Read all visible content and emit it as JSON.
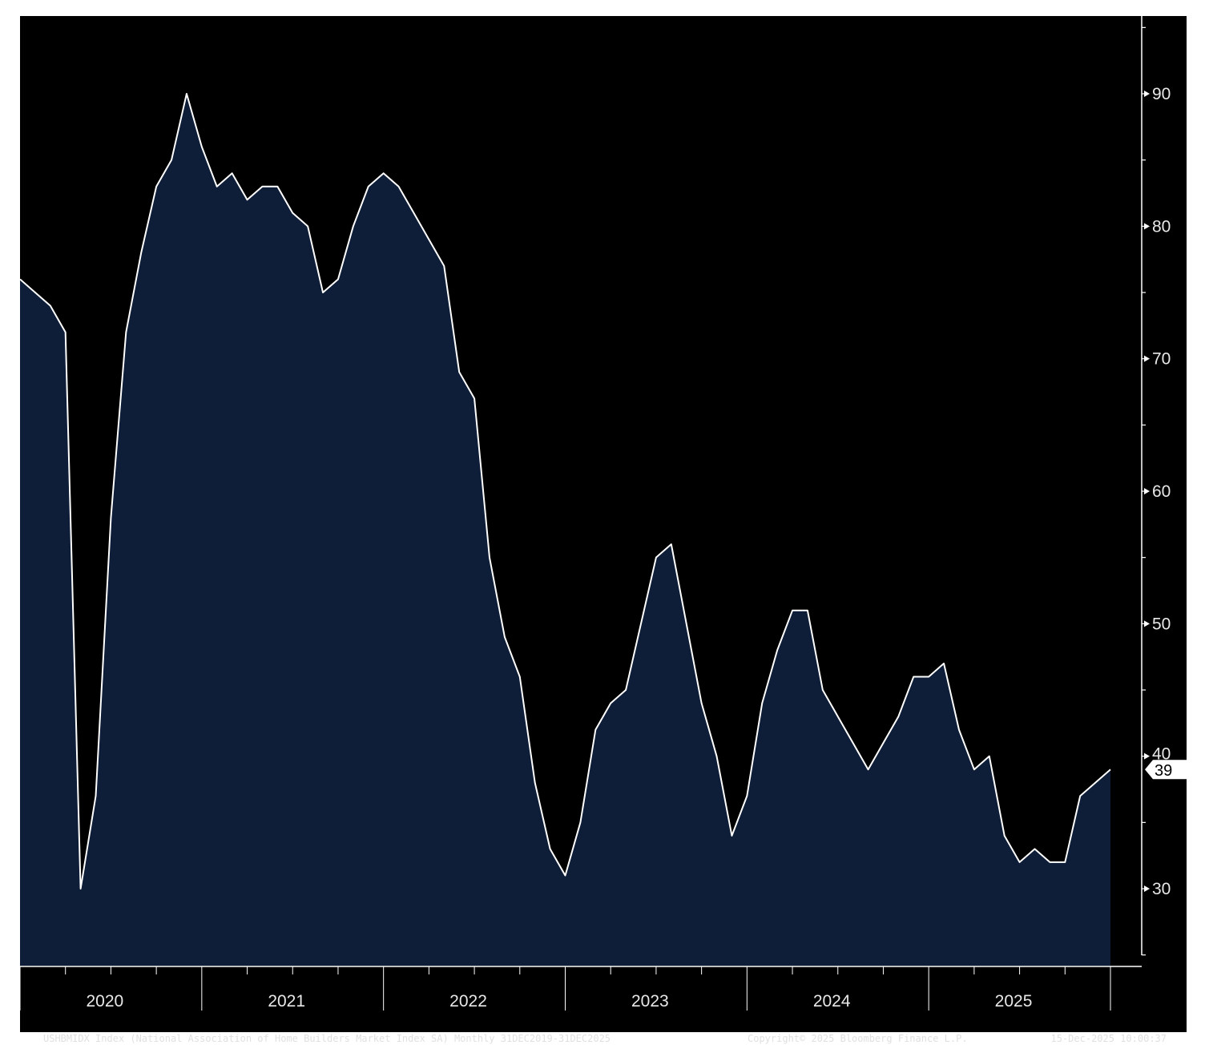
{
  "chart_data": {
    "type": "area",
    "title": "",
    "xlabel": "",
    "ylabel": "",
    "ylim": [
      24.5,
      95
    ],
    "yticks": [
      30,
      40,
      50,
      60,
      70,
      80,
      90
    ],
    "x_year_labels": [
      "2020",
      "2021",
      "2022",
      "2023",
      "2024",
      "2025"
    ],
    "last_value_label": "39",
    "series": [
      {
        "x": [
          "2019-12",
          "2020-01",
          "2020-02",
          "2020-03",
          "2020-04",
          "2020-05",
          "2020-06",
          "2020-07",
          "2020-08",
          "2020-09",
          "2020-10",
          "2020-11",
          "2020-12",
          "2021-01",
          "2021-02",
          "2021-03",
          "2021-04",
          "2021-05",
          "2021-06",
          "2021-07",
          "2021-08",
          "2021-09",
          "2021-10",
          "2021-11",
          "2021-12",
          "2022-01",
          "2022-02",
          "2022-03",
          "2022-04",
          "2022-05",
          "2022-06",
          "2022-07",
          "2022-08",
          "2022-09",
          "2022-10",
          "2022-11",
          "2022-12",
          "2023-01",
          "2023-02",
          "2023-03",
          "2023-04",
          "2023-05",
          "2023-06",
          "2023-07",
          "2023-08",
          "2023-09",
          "2023-10",
          "2023-11",
          "2023-12",
          "2024-01",
          "2024-02",
          "2024-03",
          "2024-04",
          "2024-05",
          "2024-06",
          "2024-07",
          "2024-08",
          "2024-09",
          "2024-10",
          "2024-11",
          "2024-12",
          "2025-01",
          "2025-02",
          "2025-03",
          "2025-04",
          "2025-05",
          "2025-06",
          "2025-07",
          "2025-08",
          "2025-09",
          "2025-10",
          "2025-11",
          "2025-12"
        ],
        "values": [
          76,
          75,
          74,
          72,
          30,
          37,
          58,
          72,
          78,
          83,
          85,
          90,
          86,
          83,
          84,
          82,
          83,
          83,
          81,
          80,
          75,
          76,
          80,
          83,
          84,
          83,
          81,
          79,
          77,
          69,
          67,
          55,
          49,
          46,
          38,
          33,
          31,
          35,
          42,
          44,
          45,
          50,
          55,
          56,
          50,
          44,
          40,
          34,
          37,
          44,
          48,
          51,
          51,
          45,
          43,
          41,
          39,
          41,
          43,
          46,
          46,
          47,
          42,
          39,
          40,
          34,
          32,
          33,
          32,
          32,
          37,
          38,
          39
        ]
      }
    ]
  },
  "colors": {
    "frame_background": "#000000",
    "area_fill": "#0f1e38",
    "line": "#ffffff",
    "text": "#e8e8e8"
  },
  "footer": {
    "title": "USHBMIDX Index (National Association of Home Builders Market Index SA) Monthly 31DEC2019-31DEC2025",
    "copyright": "Copyright© 2025 Bloomberg Finance L.P.",
    "timestamp": "15-Dec-2025 10:00:37"
  }
}
